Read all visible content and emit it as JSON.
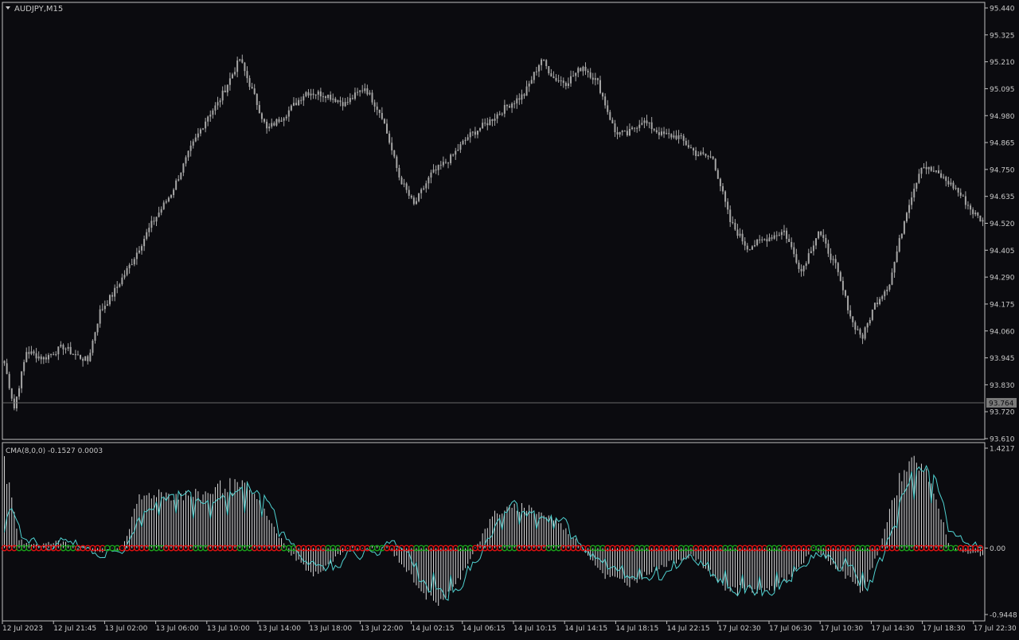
{
  "window": {
    "symbol_title": "AUDJPY,M15"
  },
  "indicator": {
    "label": "CMA(8,0,0) -0.1527 0.0003"
  },
  "colors": {
    "background": "#0b0b0f",
    "frame": "#c0c0c0",
    "candle": "#a6a6a6",
    "histogram": "#d8d8d8",
    "signal_line": "#4fd1d0",
    "dot_red": "#e01010",
    "dot_green": "#1aa01a",
    "text": "#c8c8c8"
  },
  "price_axis": {
    "labels": [
      "95.440",
      "95.325",
      "95.210",
      "95.095",
      "94.980",
      "94.865",
      "94.750",
      "94.635",
      "94.520",
      "94.405",
      "94.290",
      "94.175",
      "94.060",
      "93.945",
      "93.830",
      "93.720",
      "93.610"
    ],
    "current_price": "93.764"
  },
  "indicator_axis": {
    "labels": [
      "1.4217",
      "0.00",
      "-0.9448"
    ]
  },
  "time_axis": {
    "labels": [
      "12 Jul 2023",
      "12 Jul 21:45",
      "13 Jul 02:00",
      "13 Jul 06:00",
      "13 Jul 10:00",
      "13 Jul 14:00",
      "13 Jul 18:00",
      "13 Jul 22:00",
      "14 Jul 02:15",
      "14 Jul 06:15",
      "14 Jul 10:15",
      "14 Jul 14:15",
      "14 Jul 18:15",
      "14 Jul 22:15",
      "17 Jul 02:30",
      "17 Jul 06:30",
      "17 Jul 10:30",
      "17 Jul 14:30",
      "17 Jul 18:30",
      "17 Jul 22:30"
    ]
  },
  "chart_data": {
    "type": "candlestick",
    "symbol": "AUDJPY",
    "timeframe": "M15",
    "ylim": [
      93.61,
      95.44
    ],
    "price_anchors": [
      [
        0,
        93.93
      ],
      [
        4,
        93.74
      ],
      [
        9,
        93.98
      ],
      [
        16,
        93.95
      ],
      [
        24,
        94.0
      ],
      [
        28,
        93.97
      ],
      [
        34,
        93.94
      ],
      [
        39,
        94.15
      ],
      [
        44,
        94.22
      ],
      [
        52,
        94.36
      ],
      [
        60,
        94.52
      ],
      [
        68,
        94.65
      ],
      [
        76,
        94.84
      ],
      [
        83,
        94.98
      ],
      [
        87,
        95.03
      ],
      [
        96,
        95.22
      ],
      [
        102,
        95.06
      ],
      [
        107,
        94.92
      ],
      [
        115,
        94.99
      ],
      [
        123,
        95.08
      ],
      [
        131,
        95.07
      ],
      [
        139,
        95.03
      ],
      [
        147,
        95.1
      ],
      [
        154,
        94.98
      ],
      [
        161,
        94.72
      ],
      [
        167,
        94.6
      ],
      [
        174,
        94.73
      ],
      [
        182,
        94.8
      ],
      [
        189,
        94.89
      ],
      [
        197,
        94.95
      ],
      [
        205,
        95.02
      ],
      [
        212,
        95.07
      ],
      [
        219,
        95.22
      ],
      [
        224,
        95.14
      ],
      [
        229,
        95.12
      ],
      [
        236,
        95.19
      ],
      [
        242,
        95.12
      ],
      [
        249,
        94.91
      ],
      [
        254,
        94.9
      ],
      [
        260,
        94.96
      ],
      [
        268,
        94.9
      ],
      [
        275,
        94.89
      ],
      [
        282,
        94.82
      ],
      [
        289,
        94.8
      ],
      [
        296,
        94.53
      ],
      [
        303,
        94.42
      ],
      [
        311,
        94.46
      ],
      [
        318,
        94.49
      ],
      [
        325,
        94.32
      ],
      [
        332,
        94.49
      ],
      [
        339,
        94.34
      ],
      [
        346,
        94.1
      ],
      [
        350,
        94.04
      ],
      [
        355,
        94.18
      ],
      [
        361,
        94.27
      ],
      [
        368,
        94.58
      ],
      [
        374,
        94.77
      ],
      [
        381,
        94.73
      ],
      [
        388,
        94.67
      ],
      [
        395,
        94.57
      ],
      [
        399,
        94.53
      ]
    ],
    "indicator": {
      "name": "CMA(8,0,0)",
      "values": [
        -0.1527,
        0.0003
      ],
      "ylim": [
        -0.9448,
        1.4217
      ],
      "hist_anchors": [
        [
          0,
          1.2
        ],
        [
          6,
          0.1
        ],
        [
          15,
          0.05
        ],
        [
          25,
          0.1
        ],
        [
          30,
          0.0
        ],
        [
          40,
          -0.05
        ],
        [
          48,
          0.0
        ],
        [
          55,
          0.7
        ],
        [
          62,
          0.8
        ],
        [
          70,
          0.75
        ],
        [
          80,
          0.75
        ],
        [
          90,
          0.9
        ],
        [
          100,
          0.85
        ],
        [
          115,
          0.0
        ],
        [
          126,
          -0.4
        ],
        [
          140,
          0.0
        ],
        [
          157,
          0.0
        ],
        [
          175,
          -0.8
        ],
        [
          183,
          -0.6
        ],
        [
          192,
          0.0
        ],
        [
          200,
          0.5
        ],
        [
          212,
          0.6
        ],
        [
          225,
          0.4
        ],
        [
          236,
          0.0
        ],
        [
          245,
          -0.4
        ],
        [
          255,
          -0.5
        ],
        [
          265,
          -0.3
        ],
        [
          280,
          -0.1
        ],
        [
          296,
          -0.6
        ],
        [
          312,
          -0.6
        ],
        [
          324,
          -0.3
        ],
        [
          330,
          0.0
        ],
        [
          340,
          -0.3
        ],
        [
          350,
          -0.6
        ],
        [
          357,
          0.0
        ],
        [
          361,
          0.5
        ],
        [
          367,
          1.2
        ],
        [
          375,
          1.2
        ],
        [
          386,
          0.0
        ],
        [
          399,
          -0.1
        ]
      ]
    }
  }
}
